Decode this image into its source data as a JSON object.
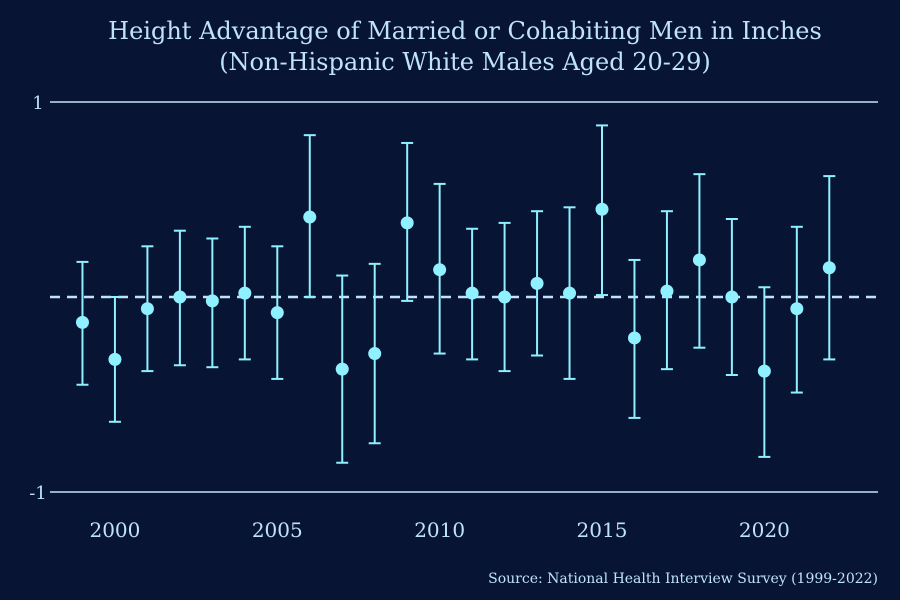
{
  "chart_data": {
    "type": "scatter",
    "title_lines": [
      "Height Advantage of Married or Cohabiting Men in Inches",
      "(Non-Hispanic White Males Aged 20-29)"
    ],
    "source": "Source: National Health Interview Survey (1999-2022)",
    "xlabel": "",
    "ylabel": "",
    "xlim": [
      1998,
      2023.5
    ],
    "ylim": [
      -1,
      1
    ],
    "x_ticks": [
      2000,
      2005,
      2010,
      2015,
      2020
    ],
    "y_ticks": [
      -1,
      1
    ],
    "reference_line": 0,
    "points": [
      {
        "x": 1999,
        "y": -0.13,
        "lo": -0.45,
        "hi": 0.18
      },
      {
        "x": 2000,
        "y": -0.32,
        "lo": -0.64,
        "hi": 0.0
      },
      {
        "x": 2001,
        "y": -0.06,
        "lo": -0.38,
        "hi": 0.26
      },
      {
        "x": 2002,
        "y": 0.0,
        "lo": -0.35,
        "hi": 0.34
      },
      {
        "x": 2003,
        "y": -0.02,
        "lo": -0.36,
        "hi": 0.3
      },
      {
        "x": 2004,
        "y": 0.02,
        "lo": -0.32,
        "hi": 0.36
      },
      {
        "x": 2005,
        "y": -0.08,
        "lo": -0.42,
        "hi": 0.26
      },
      {
        "x": 2006,
        "y": 0.41,
        "lo": 0.0,
        "hi": 0.83
      },
      {
        "x": 2007,
        "y": -0.37,
        "lo": -0.85,
        "hi": 0.11
      },
      {
        "x": 2008,
        "y": -0.29,
        "lo": -0.75,
        "hi": 0.17
      },
      {
        "x": 2009,
        "y": 0.38,
        "lo": -0.02,
        "hi": 0.79
      },
      {
        "x": 2010,
        "y": 0.14,
        "lo": -0.29,
        "hi": 0.58
      },
      {
        "x": 2011,
        "y": 0.02,
        "lo": -0.32,
        "hi": 0.35
      },
      {
        "x": 2012,
        "y": 0.0,
        "lo": -0.38,
        "hi": 0.38
      },
      {
        "x": 2013,
        "y": 0.07,
        "lo": -0.3,
        "hi": 0.44
      },
      {
        "x": 2014,
        "y": 0.02,
        "lo": -0.42,
        "hi": 0.46
      },
      {
        "x": 2015,
        "y": 0.45,
        "lo": 0.01,
        "hi": 0.88
      },
      {
        "x": 2016,
        "y": -0.21,
        "lo": -0.62,
        "hi": 0.19
      },
      {
        "x": 2017,
        "y": 0.03,
        "lo": -0.37,
        "hi": 0.44
      },
      {
        "x": 2018,
        "y": 0.19,
        "lo": -0.26,
        "hi": 0.63
      },
      {
        "x": 2019,
        "y": 0.0,
        "lo": -0.4,
        "hi": 0.4
      },
      {
        "x": 2020,
        "y": -0.38,
        "lo": -0.82,
        "hi": 0.05
      },
      {
        "x": 2021,
        "y": -0.06,
        "lo": -0.49,
        "hi": 0.36
      },
      {
        "x": 2022,
        "y": 0.15,
        "lo": -0.32,
        "hi": 0.62
      }
    ],
    "colors": {
      "background": "#081433",
      "points": "#8ff0ff",
      "text": "#bfe3f7",
      "gridlines": "#bfe3f7",
      "reference": "#bfe3f7"
    },
    "grid": true,
    "legend": "none"
  }
}
